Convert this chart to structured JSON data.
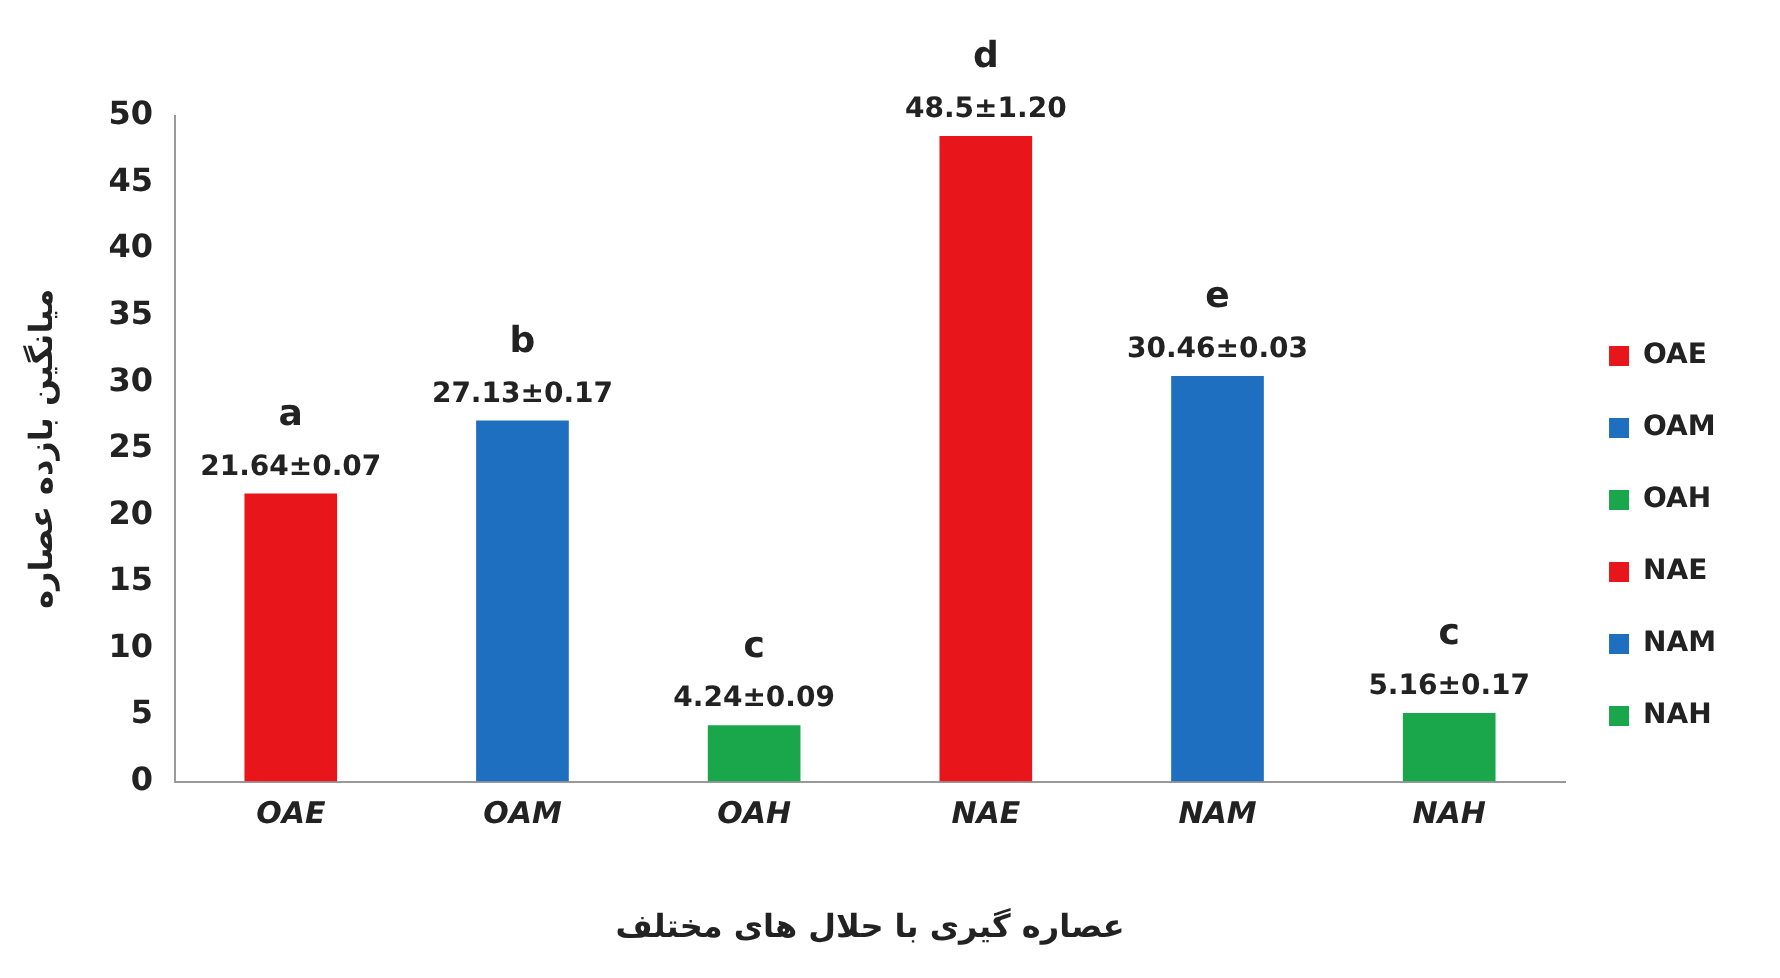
{
  "chart_data": {
    "type": "bar",
    "xlabel": "عصاره گیری با حلال های مختلف",
    "ylabel": "میانگین بازده عصاره",
    "categories": [
      "OAE",
      "OAM",
      "OAH",
      "NAE",
      "NAM",
      "NAH"
    ],
    "series": [
      {
        "name": "OAE",
        "color": "#e8161b",
        "values": [
          21.64,
          null,
          null,
          null,
          null,
          null
        ],
        "value_labels": [
          "21.64±0.07",
          null,
          null,
          null,
          null,
          null
        ]
      },
      {
        "name": "OAM",
        "color": "#1f6fc0",
        "values": [
          null,
          27.13,
          null,
          null,
          null,
          null
        ],
        "value_labels": [
          null,
          "27.13±0.17",
          null,
          null,
          null,
          null
        ]
      },
      {
        "name": "OAH",
        "color": "#1aa64a",
        "values": [
          null,
          null,
          4.24,
          null,
          null,
          null
        ],
        "value_labels": [
          null,
          null,
          "4.24±0.09",
          null,
          null,
          null
        ]
      },
      {
        "name": "NAE",
        "color": "#e8161b",
        "values": [
          null,
          null,
          null,
          48.5,
          null,
          null
        ],
        "value_labels": [
          null,
          null,
          null,
          "48.5±1.20",
          null,
          null
        ]
      },
      {
        "name": "NAM",
        "color": "#1f6fc0",
        "values": [
          null,
          null,
          null,
          null,
          30.46,
          null
        ],
        "value_labels": [
          null,
          null,
          null,
          null,
          "30.46±0.03",
          null
        ]
      },
      {
        "name": "NAH",
        "color": "#1aa64a",
        "values": [
          null,
          null,
          null,
          null,
          null,
          5.16
        ],
        "value_labels": [
          null,
          null,
          null,
          null,
          null,
          "5.16±0.17"
        ]
      }
    ],
    "annotations": [
      {
        "text": "a",
        "x": "OAE",
        "y": 21.64
      },
      {
        "text": "b",
        "x": "OAM",
        "y": 27.13
      },
      {
        "text": "c",
        "x": "OAH",
        "y": 4.24
      },
      {
        "text": "d",
        "x": "NAE",
        "y": 48.5
      },
      {
        "text": "e",
        "x": "NAM",
        "y": 30.46
      },
      {
        "text": "c",
        "x": "NAH",
        "y": 5.16
      }
    ],
    "ylim": [
      0,
      50
    ],
    "yticks": [
      0,
      5,
      10,
      15,
      20,
      25,
      30,
      35,
      40,
      45,
      50
    ],
    "grid": false,
    "legend": "right"
  }
}
